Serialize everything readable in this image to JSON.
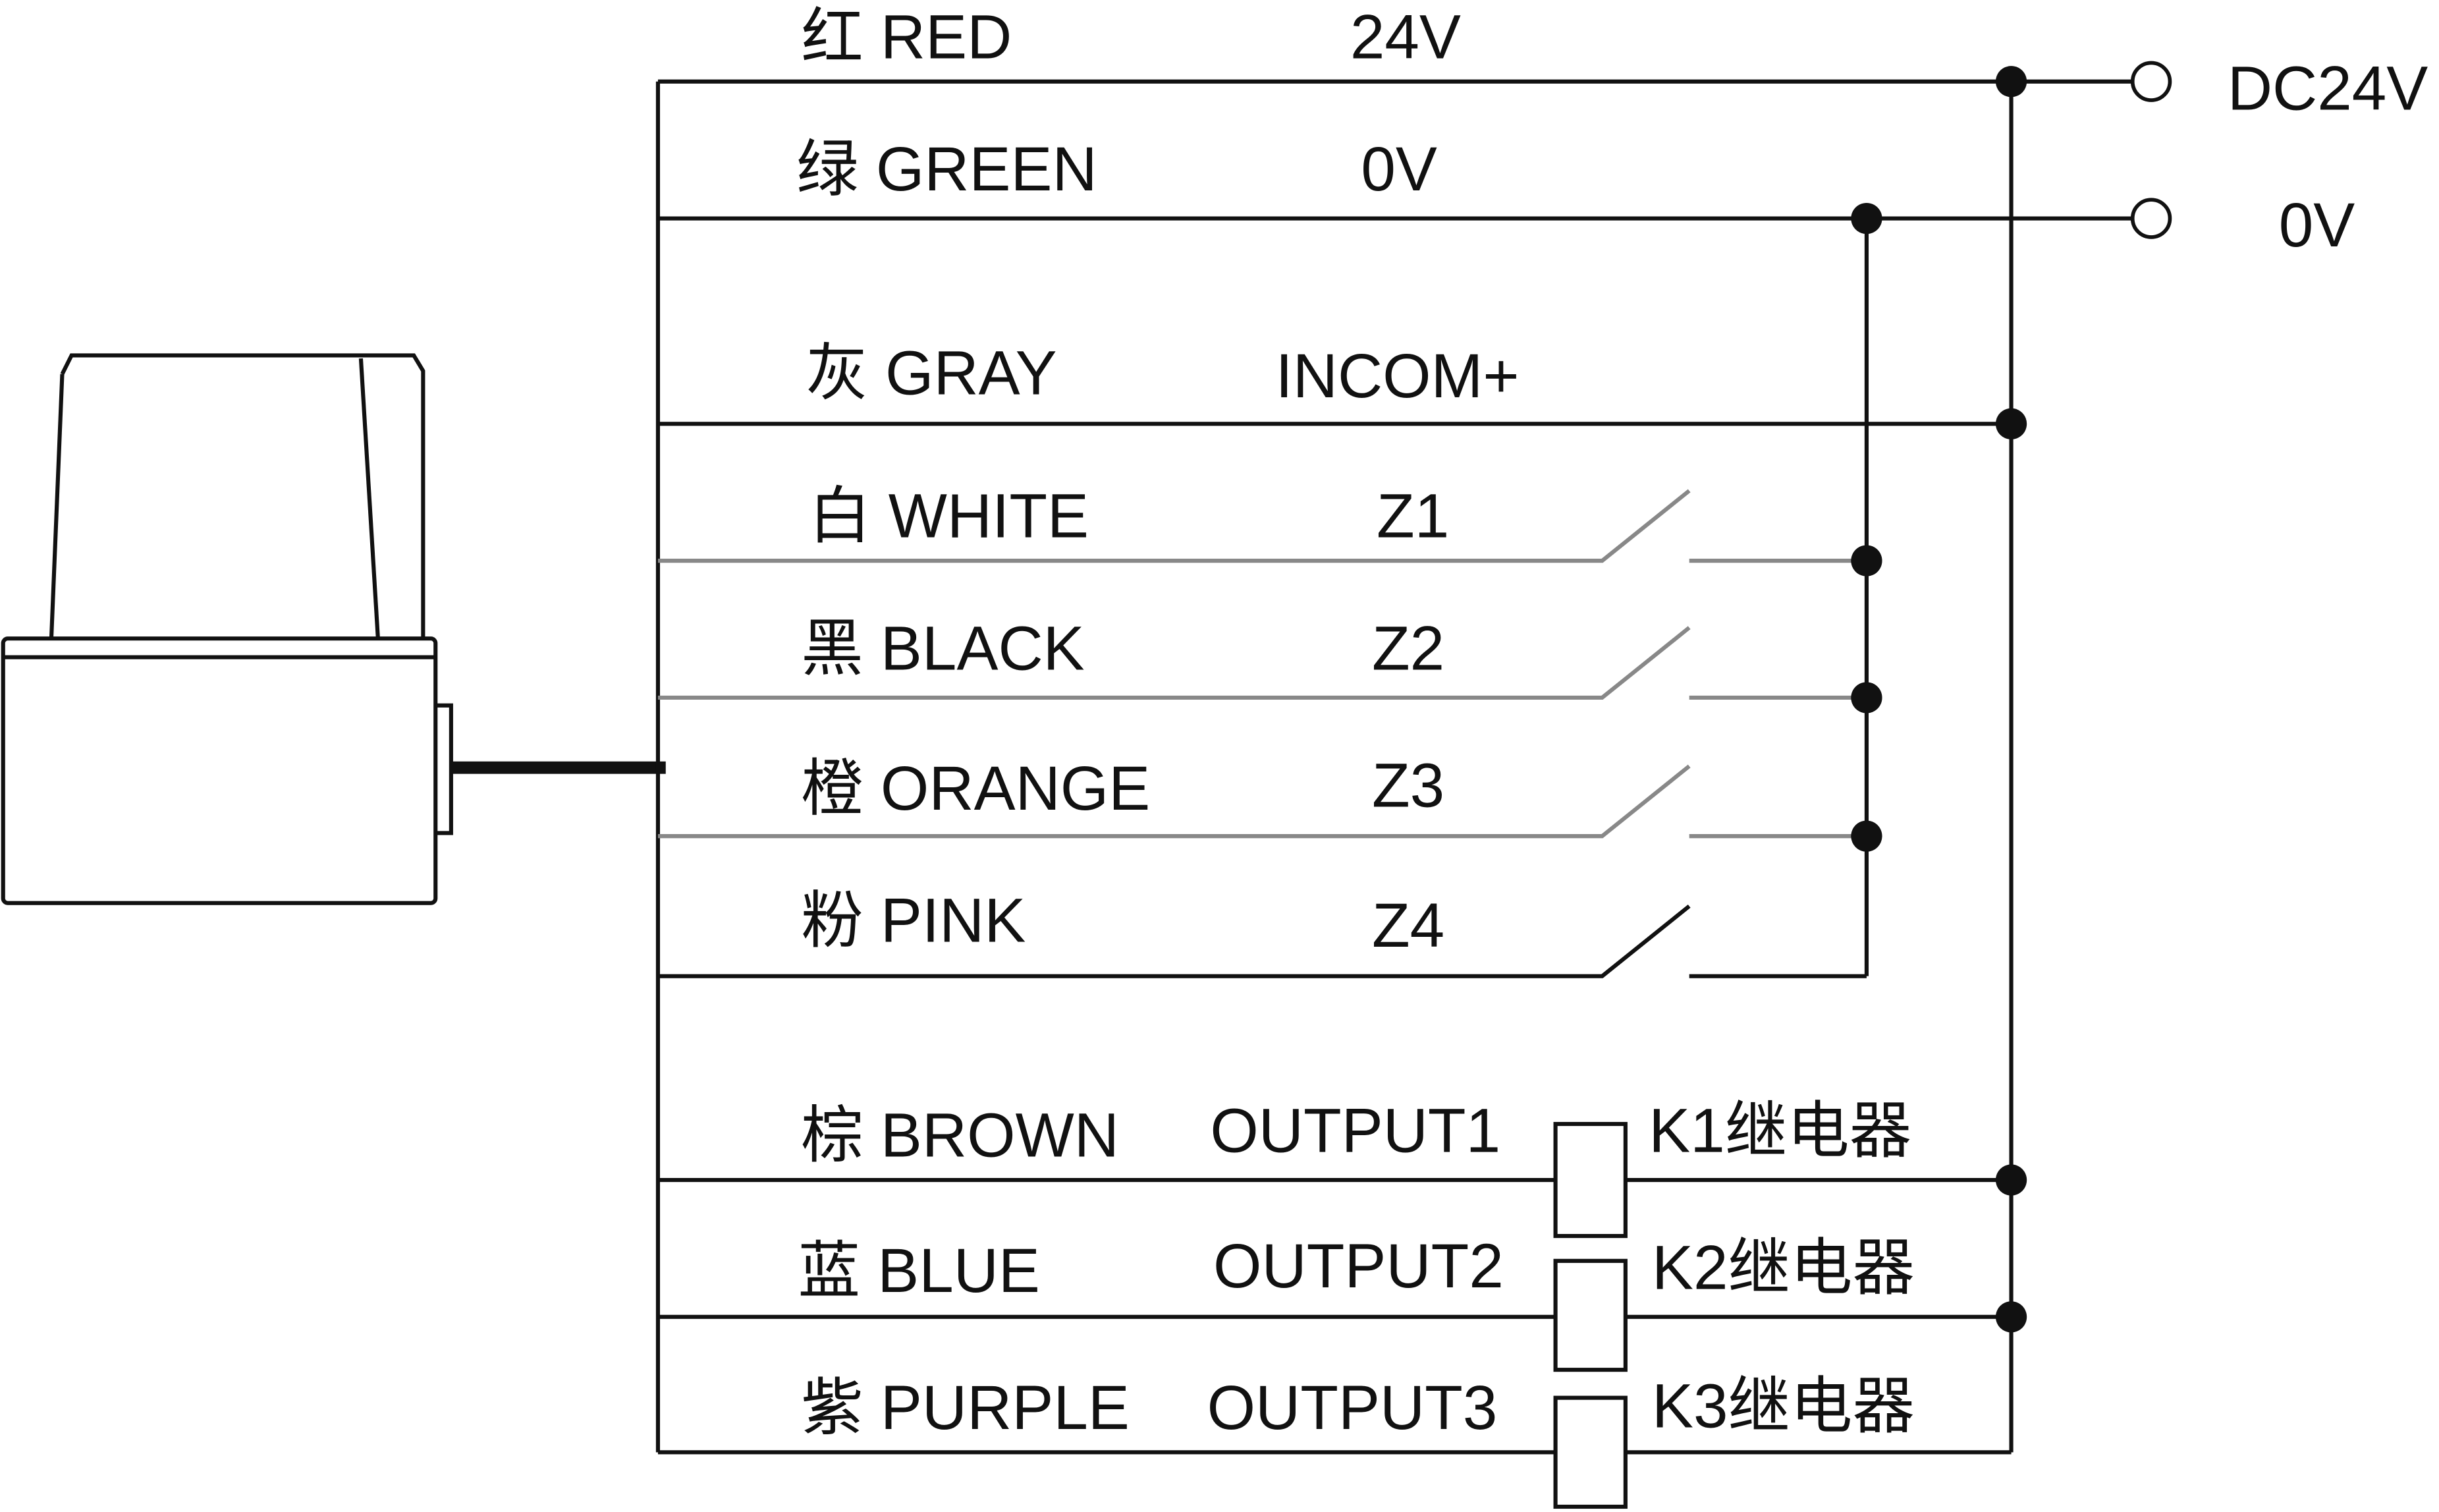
{
  "wires": [
    {
      "color_label": "红 RED",
      "signal": "24V"
    },
    {
      "color_label": "绿 GREEN",
      "signal": "0V"
    },
    {
      "color_label": "灰 GRAY",
      "signal": "INCOM+"
    },
    {
      "color_label": "白 WHITE",
      "signal": "Z1"
    },
    {
      "color_label": "黑 BLACK",
      "signal": "Z2"
    },
    {
      "color_label": "橙 ORANGE",
      "signal": "Z3"
    },
    {
      "color_label": "粉 PINK",
      "signal": "Z4"
    },
    {
      "color_label": "棕 BROWN",
      "signal": "OUTPUT1",
      "relay": "K1继电器"
    },
    {
      "color_label": "蓝 BLUE",
      "signal": "OUTPUT2",
      "relay": "K2继电器"
    },
    {
      "color_label": "紫 PURPLE",
      "signal": "OUTPUT3",
      "relay": "K3继电器"
    }
  ],
  "terminals": {
    "supply": "DC24V",
    "ground": "0V"
  },
  "colors": {
    "line": "#111111",
    "background": "#ffffff"
  }
}
